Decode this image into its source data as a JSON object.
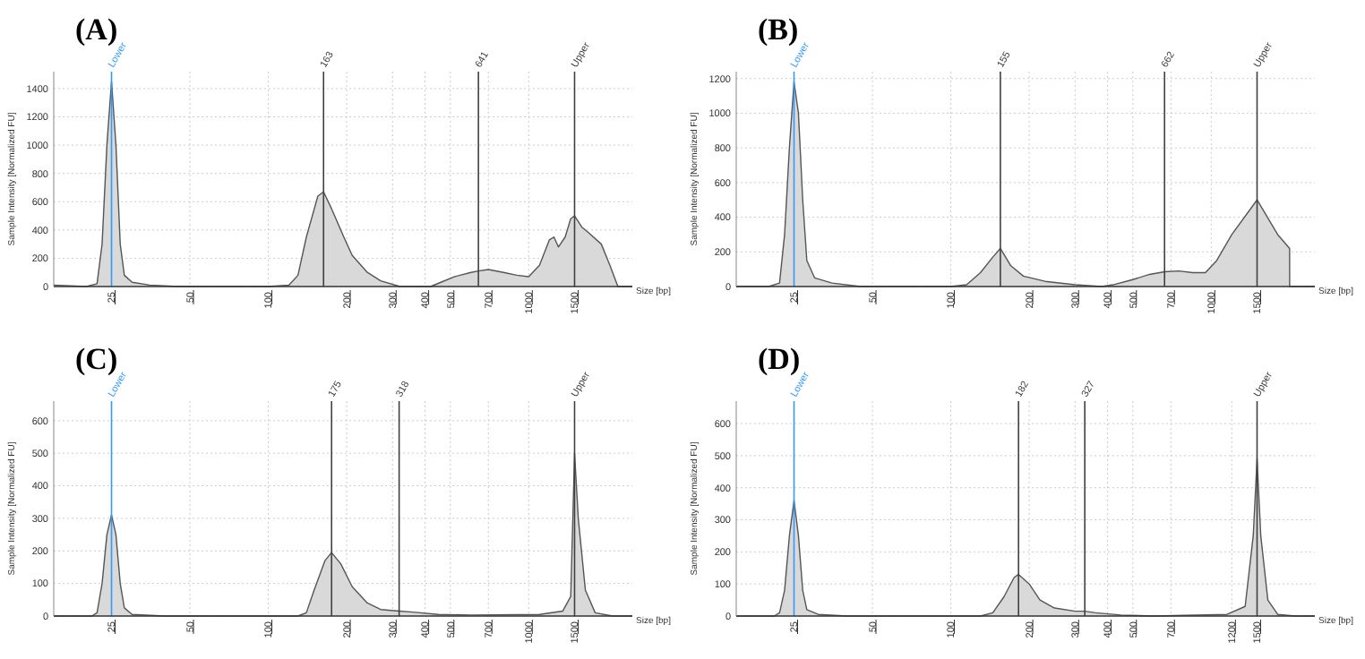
{
  "chart_data": [
    {
      "type": "area",
      "title": "(A)",
      "xlabel": "Size [bp]",
      "ylabel": "Sample Intensity [Normalized FU]",
      "grid": true,
      "log": "x",
      "xlim": [
        15,
        2500
      ],
      "ylim": [
        0,
        1520
      ],
      "yticks": [
        0,
        200,
        400,
        600,
        800,
        1000,
        1200,
        1400
      ],
      "xticks": [
        25,
        50,
        100,
        200,
        300,
        400,
        500,
        700,
        1000,
        1500
      ],
      "series": [
        {
          "color": "#d9d9d9",
          "x": [
            15,
            20,
            22,
            23,
            24,
            25,
            26,
            27,
            28,
            30,
            35,
            45,
            100,
            120,
            130,
            140,
            155,
            163,
            175,
            195,
            210,
            240,
            270,
            320,
            420,
            460,
            520,
            600,
            641,
            700,
            800,
            900,
            1000,
            1100,
            1200,
            1250,
            1300,
            1380,
            1450,
            1500,
            1600,
            1700,
            1900,
            2050,
            2200,
            2500
          ],
          "values": [
            10,
            0,
            20,
            300,
            1000,
            1450,
            1000,
            300,
            80,
            30,
            10,
            0,
            0,
            10,
            80,
            350,
            640,
            670,
            550,
            350,
            220,
            100,
            40,
            0,
            0,
            30,
            70,
            100,
            110,
            120,
            100,
            80,
            70,
            150,
            330,
            350,
            280,
            350,
            480,
            500,
            420,
            380,
            300,
            150,
            0,
            0
          ]
        }
      ],
      "ref_lines": [
        {
          "axis": "x",
          "value": 25,
          "label": "Lower",
          "color": "#3399ff"
        },
        {
          "axis": "x",
          "value": 163,
          "label": "163",
          "color": "#404040"
        },
        {
          "axis": "x",
          "value": 641,
          "label": "641",
          "color": "#404040"
        },
        {
          "axis": "x",
          "value": 1500,
          "label": "Upper",
          "color": "#404040"
        }
      ]
    },
    {
      "type": "area",
      "title": "(B)",
      "xlabel": "Size [bp]",
      "ylabel": "Sample Intensity [Normalized FU]",
      "grid": true,
      "log": "x",
      "xlim": [
        15,
        2500
      ],
      "ylim": [
        0,
        1240
      ],
      "yticks": [
        0,
        200,
        400,
        600,
        800,
        1000,
        1200
      ],
      "xticks": [
        25,
        50,
        100,
        200,
        300,
        400,
        500,
        700,
        1000,
        1500
      ],
      "series": [
        {
          "color": "#d9d9d9",
          "x": [
            15,
            20,
            22,
            23,
            24,
            25,
            26,
            27,
            28,
            30,
            35,
            45,
            100,
            115,
            130,
            145,
            155,
            170,
            190,
            230,
            300,
            380,
            420,
            500,
            580,
            662,
            750,
            850,
            950,
            1050,
            1200,
            1500,
            1800,
            2000,
            2001,
            2500
          ],
          "values": [
            0,
            0,
            20,
            300,
            800,
            1180,
            1000,
            500,
            150,
            50,
            20,
            0,
            0,
            10,
            80,
            170,
            220,
            120,
            60,
            30,
            10,
            0,
            10,
            40,
            70,
            85,
            90,
            80,
            80,
            150,
            300,
            500,
            300,
            220,
            0,
            0
          ]
        }
      ],
      "ref_lines": [
        {
          "axis": "x",
          "value": 25,
          "label": "Lower",
          "color": "#3399ff"
        },
        {
          "axis": "x",
          "value": 155,
          "label": "155",
          "color": "#404040"
        },
        {
          "axis": "x",
          "value": 662,
          "label": "662",
          "color": "#404040"
        },
        {
          "axis": "x",
          "value": 1500,
          "label": "Upper",
          "color": "#404040"
        }
      ]
    },
    {
      "type": "area",
      "title": "(C)",
      "xlabel": "Size [bp]",
      "ylabel": "Sample Intensity [Normalized FU]",
      "grid": true,
      "log": "x",
      "xlim": [
        15,
        2500
      ],
      "ylim": [
        0,
        660
      ],
      "yticks": [
        0,
        100,
        200,
        300,
        400,
        500,
        600
      ],
      "xticks": [
        25,
        50,
        100,
        200,
        300,
        400,
        500,
        700,
        1000,
        1500
      ],
      "series": [
        {
          "color": "#d9d9d9",
          "x": [
            15,
            21,
            22,
            23,
            24,
            25,
            26,
            27,
            28,
            30,
            40,
            130,
            140,
            150,
            165,
            175,
            190,
            210,
            240,
            270,
            318,
            360,
            450,
            600,
            1100,
            1350,
            1450,
            1500,
            1550,
            1650,
            1800,
            2100,
            2500
          ],
          "values": [
            0,
            0,
            10,
            100,
            250,
            310,
            250,
            100,
            25,
            5,
            0,
            0,
            10,
            80,
            170,
            195,
            160,
            90,
            40,
            20,
            15,
            12,
            5,
            3,
            5,
            15,
            60,
            500,
            300,
            80,
            10,
            0,
            0
          ]
        }
      ],
      "ref_lines": [
        {
          "axis": "x",
          "value": 25,
          "label": "Lower",
          "color": "#3399ff"
        },
        {
          "axis": "x",
          "value": 175,
          "label": "175",
          "color": "#404040"
        },
        {
          "axis": "x",
          "value": 318,
          "label": "318",
          "color": "#404040"
        },
        {
          "axis": "x",
          "value": 1500,
          "label": "Upper",
          "color": "#404040"
        }
      ]
    },
    {
      "type": "area",
      "title": "(D)",
      "xlabel": "Size [bp]",
      "ylabel": "Sample Intensity [Normalized FU]",
      "grid": true,
      "log": "x",
      "xlim": [
        15,
        2500
      ],
      "ylim": [
        0,
        670
      ],
      "yticks": [
        0,
        100,
        200,
        300,
        400,
        500,
        600
      ],
      "xticks": [
        25,
        50,
        100,
        200,
        300,
        400,
        500,
        700,
        1200,
        1500
      ],
      "series": [
        {
          "color": "#d9d9d9",
          "x": [
            15,
            21,
            22,
            23,
            24,
            25,
            26,
            27,
            28,
            31,
            40,
            130,
            145,
            160,
            175,
            182,
            200,
            220,
            250,
            300,
            327,
            360,
            450,
            600,
            1150,
            1350,
            1450,
            1500,
            1550,
            1650,
            1800,
            2100,
            2500
          ],
          "values": [
            0,
            0,
            10,
            80,
            250,
            360,
            250,
            80,
            20,
            5,
            0,
            0,
            10,
            60,
            120,
            130,
            100,
            50,
            25,
            15,
            15,
            10,
            3,
            0,
            5,
            30,
            250,
            490,
            250,
            50,
            5,
            0,
            0
          ]
        }
      ],
      "ref_lines": [
        {
          "axis": "x",
          "value": 25,
          "label": "Lower",
          "color": "#3399ff"
        },
        {
          "axis": "x",
          "value": 182,
          "label": "182",
          "color": "#404040"
        },
        {
          "axis": "x",
          "value": 327,
          "label": "327",
          "color": "#404040"
        },
        {
          "axis": "x",
          "value": 1500,
          "label": "Upper",
          "color": "#404040"
        }
      ]
    }
  ]
}
